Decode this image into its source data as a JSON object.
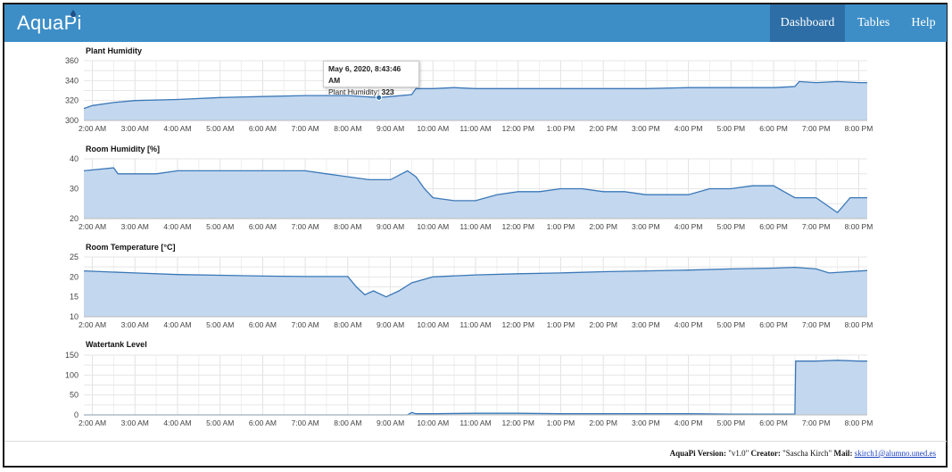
{
  "navbar": {
    "brand": "AquaPi",
    "items": [
      {
        "label": "Dashboard",
        "active": true
      },
      {
        "label": "Tables",
        "active": false
      },
      {
        "label": "Help",
        "active": false
      }
    ],
    "color": "#3d8ec7",
    "active_color": "#2d6ea6"
  },
  "tooltip": {
    "date": "May 6, 2020, 8:43:46 AM",
    "label": "Plant Humidity: ",
    "value": "323"
  },
  "x_ticks": [
    "2:00 AM",
    "3:00 AM",
    "4:00 AM",
    "5:00 AM",
    "6:00 AM",
    "7:00 AM",
    "8:00 AM",
    "9:00 AM",
    "10:00 AM",
    "11:00 AM",
    "12:00 PM",
    "1:00 PM",
    "2:00 PM",
    "3:00 PM",
    "4:00 PM",
    "5:00 PM",
    "6:00 PM",
    "7:00 PM",
    "8:00 PM"
  ],
  "chart_data": [
    {
      "type": "area",
      "title": "Plant Humidity",
      "ylim": [
        300,
        360
      ],
      "yticks": [
        300,
        320,
        340,
        360
      ],
      "x": [
        1.8,
        2.0,
        2.5,
        3.0,
        4.0,
        5.0,
        6.0,
        7.0,
        8.0,
        8.73,
        9.0,
        9.5,
        9.6,
        10.0,
        10.5,
        11.0,
        12.0,
        13.0,
        14.0,
        15.0,
        16.0,
        17.0,
        18.0,
        18.5,
        18.6,
        19.0,
        19.5,
        20.0,
        20.2
      ],
      "y": [
        312,
        315,
        318,
        320,
        321,
        323,
        324,
        325,
        325,
        323,
        324,
        326,
        332,
        332,
        333,
        332,
        332,
        332,
        332,
        332,
        333,
        333,
        333,
        334,
        339,
        338,
        339,
        338,
        338
      ],
      "color": "#3a78b8",
      "fill": "#c3d7ee"
    },
    {
      "type": "area",
      "title": "Room Humidity [%]",
      "ylim": [
        20,
        40
      ],
      "yticks": [
        20,
        30,
        40
      ],
      "x": [
        1.8,
        2.5,
        2.6,
        3.5,
        4.0,
        5.0,
        6.0,
        7.0,
        7.5,
        8.0,
        8.5,
        9.0,
        9.4,
        9.6,
        9.8,
        10.0,
        10.5,
        11.0,
        11.5,
        12.0,
        12.5,
        13.0,
        13.5,
        14.0,
        14.5,
        15.0,
        15.5,
        16.0,
        16.5,
        17.0,
        17.5,
        18.0,
        18.5,
        19.0,
        19.3,
        19.5,
        19.8,
        20.2
      ],
      "y": [
        36,
        37,
        35,
        35,
        36,
        36,
        36,
        36,
        35,
        34,
        33,
        33,
        36,
        34,
        30,
        27,
        26,
        26,
        28,
        29,
        29,
        30,
        30,
        29,
        29,
        28,
        28,
        28,
        30,
        30,
        31,
        31,
        27,
        27,
        24,
        22,
        27,
        27
      ],
      "color": "#3a78b8",
      "fill": "#c3d7ee"
    },
    {
      "type": "area",
      "title": "Room Temperature [°C]",
      "ylim": [
        10,
        25
      ],
      "yticks": [
        10,
        15,
        20,
        25
      ],
      "x": [
        1.8,
        3.0,
        4.0,
        5.0,
        6.0,
        7.0,
        8.0,
        8.2,
        8.4,
        8.6,
        8.9,
        9.2,
        9.5,
        10.0,
        11.0,
        12.0,
        13.0,
        14.0,
        15.0,
        16.0,
        17.0,
        18.0,
        18.5,
        19.0,
        19.3,
        19.6,
        20.2
      ],
      "y": [
        21.5,
        21,
        20.6,
        20.4,
        20.2,
        20.1,
        20.1,
        17.5,
        15.5,
        16.5,
        15,
        16.5,
        18.5,
        20,
        20.5,
        20.8,
        21,
        21.3,
        21.5,
        21.7,
        22,
        22.2,
        22.4,
        22,
        21,
        21.2,
        21.6
      ],
      "color": "#3a78b8",
      "fill": "#c3d7ee"
    },
    {
      "type": "area",
      "title": "Watertank Level",
      "ylim": [
        0,
        150
      ],
      "yticks": [
        0,
        50,
        100,
        150
      ],
      "x": [
        1.8,
        9.4,
        9.5,
        9.6,
        10.0,
        11.0,
        12.0,
        13.0,
        14.0,
        15.0,
        16.0,
        17.0,
        18.0,
        18.5,
        18.52,
        19.0,
        19.5,
        20.0,
        20.2
      ],
      "y": [
        0,
        0,
        6,
        3,
        3,
        4,
        4,
        3,
        3,
        3,
        3,
        2,
        2,
        2,
        135,
        135,
        137,
        135,
        135
      ],
      "color": "#3a78b8",
      "fill": "#c3d7ee"
    }
  ],
  "footer": {
    "version_label": "AquaPi Version:",
    "version_value": " \"v1.0\" ",
    "creator_label": "Creator:",
    "creator_value": " \"Sascha Kirch\" ",
    "mail_label": "Mail:",
    "mail_value": "skirch1@alumno.uned.es"
  }
}
